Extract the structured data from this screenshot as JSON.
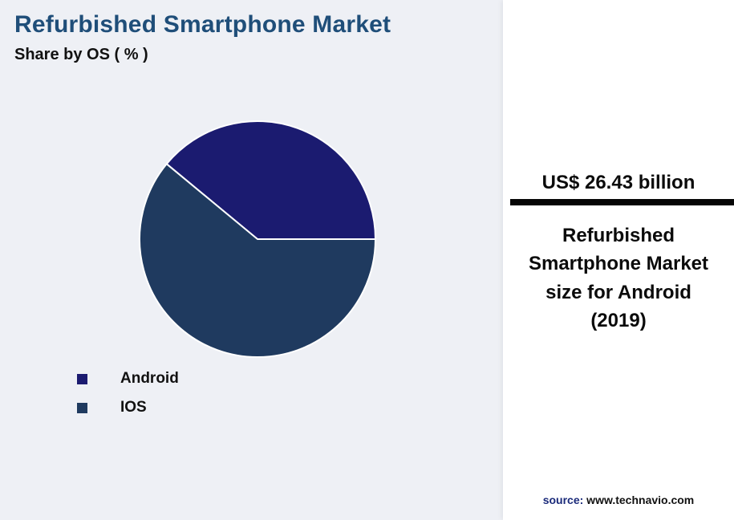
{
  "header": {
    "title": "Refurbished Smartphone Market",
    "subtitle": "Share by OS ( % )"
  },
  "chart_data": {
    "type": "pie",
    "title": "Refurbished Smartphone Market - Share by OS ( % )",
    "labels": [
      "Android",
      "IOS"
    ],
    "values": [
      39,
      61
    ],
    "unit": "%",
    "colors": [
      "#1b1b70",
      "#1f3a5f"
    ],
    "start_angle_deg": 0,
    "direction": "counterclockwise",
    "legend_position": "bottom-left",
    "slice_border_color": "#ffffff"
  },
  "panel": {
    "highlight_value": "US$ 26.43 billion",
    "description": "Refurbished Smartphone Market size for Android (2019)",
    "divider_color": "#060606",
    "source_label": "source:",
    "source_value": " www.technavio.com"
  }
}
